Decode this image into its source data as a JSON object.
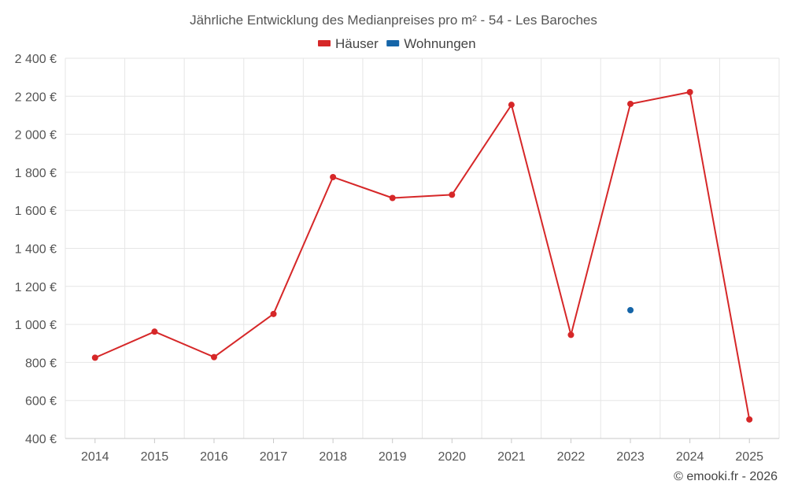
{
  "chart_data": {
    "type": "line",
    "title": "Jährliche Entwicklung des Medianpreises pro m² - 54 - Les Baroches",
    "categories": [
      "2014",
      "2015",
      "2016",
      "2017",
      "2018",
      "2019",
      "2020",
      "2021",
      "2022",
      "2023",
      "2024",
      "2025"
    ],
    "series": [
      {
        "name": "Häuser",
        "color": "#d62728",
        "values": [
          825,
          962,
          828,
          1055,
          1775,
          1665,
          1682,
          2155,
          945,
          2160,
          2222,
          500
        ]
      },
      {
        "name": "Wohnungen",
        "color": "#1565a8",
        "values": [
          null,
          null,
          null,
          null,
          null,
          null,
          null,
          null,
          null,
          1075,
          null,
          null
        ]
      }
    ],
    "ylim": [
      400,
      2400
    ],
    "yticks": [
      400,
      600,
      800,
      1000,
      1200,
      1400,
      1600,
      1800,
      2000,
      2200,
      2400
    ],
    "ytick_labels": [
      "400 €",
      "600 €",
      "800 €",
      "1 000 €",
      "1 200 €",
      "1 400 €",
      "1 600 €",
      "1 800 €",
      "2 000 €",
      "2 200 €",
      "2 400 €"
    ],
    "legend_position": "top-center",
    "grid": true
  },
  "footer": "© emooki.fr - 2026"
}
